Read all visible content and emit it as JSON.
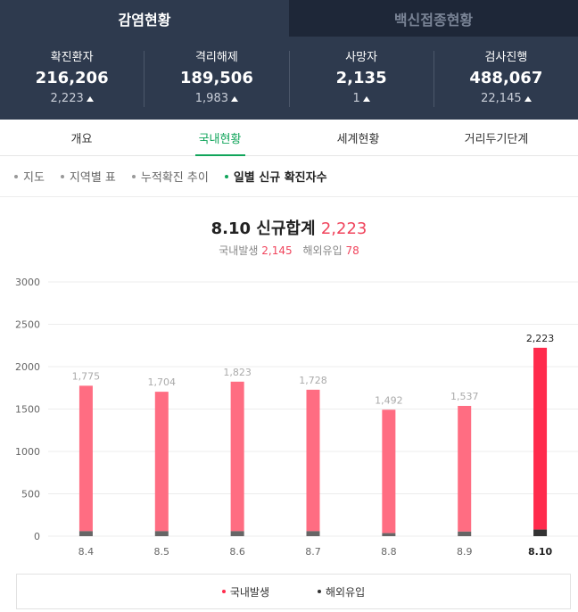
{
  "tabs": [
    {
      "label": "감염현황",
      "active": true
    },
    {
      "label": "백신접종현황",
      "active": false
    }
  ],
  "stats": [
    {
      "label": "확진환자",
      "value": "216,206",
      "delta": "2,223"
    },
    {
      "label": "격리해제",
      "value": "189,506",
      "delta": "1,983"
    },
    {
      "label": "사망자",
      "value": "2,135",
      "delta": "1"
    },
    {
      "label": "검사진행",
      "value": "488,067",
      "delta": "22,145"
    }
  ],
  "sub_tabs": [
    {
      "label": "개요",
      "active": false
    },
    {
      "label": "국내현황",
      "active": true
    },
    {
      "label": "세계현황",
      "active": false
    },
    {
      "label": "거리두기단계",
      "active": false
    }
  ],
  "chart_nav": [
    {
      "label": "지도",
      "active": false
    },
    {
      "label": "지역별 표",
      "active": false
    },
    {
      "label": "누적확진 추이",
      "active": false
    },
    {
      "label": "일별 신규 확진자수",
      "active": true
    }
  ],
  "summary": {
    "title_prefix": "8.10 신규합계",
    "total": "2,223",
    "domestic_label": "국내발생",
    "domestic_value": "2,145",
    "overseas_label": "해외유입",
    "overseas_value": "78"
  },
  "colors": {
    "accent_green": "#11a55b",
    "domestic": "#ff6d82",
    "domestic_latest": "#ff2b4c",
    "overseas": "#666666",
    "overseas_latest": "#333333"
  },
  "chart_data": {
    "type": "bar",
    "stacked": true,
    "categories": [
      "8.4",
      "8.5",
      "8.6",
      "8.7",
      "8.8",
      "8.9",
      "8.10"
    ],
    "series": [
      {
        "name": "국내발생",
        "values": [
          1716,
          1645,
          1764,
          1669,
          1456,
          1483,
          2145
        ]
      },
      {
        "name": "해외유입",
        "values": [
          59,
          59,
          59,
          59,
          36,
          54,
          78
        ]
      }
    ],
    "totals": [
      "1,775",
      "1,704",
      "1,823",
      "1,728",
      "1,492",
      "1,537",
      "2,223"
    ],
    "yticks": [
      0,
      500,
      1000,
      1500,
      2000,
      2500,
      3000
    ],
    "ylim": [
      0,
      3000
    ],
    "grid": true,
    "legend_position": "bottom"
  }
}
